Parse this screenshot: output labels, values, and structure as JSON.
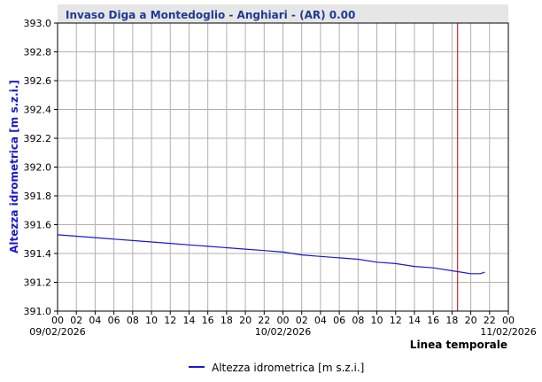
{
  "chart_data": {
    "type": "line",
    "title": "Invaso Diga a Montedoglio - Anghiari  -  (AR) 0.00",
    "ylabel": "Altezza idrometrica [m s.z.i.]",
    "xlabel": "Linea temporale",
    "ylim": [
      391.0,
      393.0
    ],
    "y_ticks": [
      "391.0",
      "391.2",
      "391.4",
      "391.6",
      "391.8",
      "392.0",
      "392.2",
      "392.4",
      "392.6",
      "392.8",
      "393.0"
    ],
    "x_range_hours": [
      0,
      48
    ],
    "x_ticks": [
      "00",
      "02",
      "04",
      "06",
      "08",
      "10",
      "12",
      "14",
      "16",
      "18",
      "20",
      "22",
      "00",
      "02",
      "04",
      "06",
      "08",
      "10",
      "12",
      "14",
      "16",
      "18",
      "20",
      "22",
      "00"
    ],
    "date_labels": [
      {
        "hour": 0,
        "label": "09/02/2026"
      },
      {
        "hour": 24,
        "label": "10/02/2026"
      },
      {
        "hour": 48,
        "label": "11/02/2026"
      }
    ],
    "current_time_hour": 42.6,
    "grid": true,
    "legend_position": "bottom-center",
    "series": [
      {
        "name": "Altezza idrometrica [m s.z.i.]",
        "color": "#1a1acc",
        "x": [
          0,
          2,
          4,
          6,
          8,
          10,
          12,
          14,
          16,
          18,
          20,
          22,
          24,
          26,
          28,
          30,
          32,
          34,
          36,
          38,
          40,
          42,
          43,
          44,
          45,
          45.5
        ],
        "y": [
          391.53,
          391.52,
          391.51,
          391.5,
          391.49,
          391.48,
          391.47,
          391.46,
          391.45,
          391.44,
          391.43,
          391.42,
          391.41,
          391.39,
          391.38,
          391.37,
          391.36,
          391.34,
          391.33,
          391.31,
          391.3,
          391.28,
          391.27,
          391.26,
          391.26,
          391.27
        ]
      }
    ]
  },
  "colors": {
    "frame": "#000000",
    "grid": "#b0b0b0",
    "now_line": "#cc0000",
    "title_band": "#e6e6e6"
  }
}
